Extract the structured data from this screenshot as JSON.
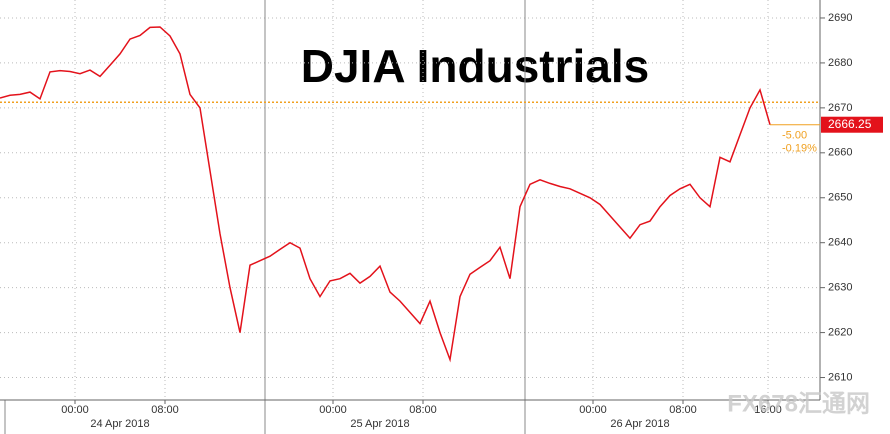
{
  "chart_data": {
    "type": "line",
    "title": "DJIA Industrials",
    "values": [
      2672.2,
      2672.8,
      2673.0,
      2673.5,
      2672.0,
      2678.0,
      2678.3,
      2678.1,
      2677.6,
      2678.4,
      2677.0,
      2679.5,
      2682.0,
      2685.3,
      2686.1,
      2687.9,
      2688.0,
      2686.0,
      2682.0,
      2673.0,
      2670.0,
      2656.0,
      2642.0,
      2630.0,
      2620.0,
      2635.0,
      2636.0,
      2637.0,
      2638.5,
      2640.0,
      2638.8,
      2632.0,
      2628.0,
      2631.5,
      2632.0,
      2633.2,
      2631.0,
      2632.5,
      2634.8,
      2629.0,
      2627.0,
      2624.5,
      2622.0,
      2627.0,
      2620.0,
      2614.0,
      2628.0,
      2633.0,
      2634.5,
      2636.0,
      2639.0,
      2632.0,
      2648.0,
      2653.0,
      2654.0,
      2653.2,
      2652.5,
      2652.0,
      2651.0,
      2650.0,
      2648.5,
      2646.0,
      2643.5,
      2641.0,
      2644.0,
      2644.8,
      2648.0,
      2650.5,
      2652.0,
      2653.0,
      2650.0,
      2648.0,
      2659.0,
      2658.0,
      2664.0,
      2670.0,
      2674.0,
      2666.25
    ],
    "color": "#e3121b",
    "xlim": [
      0,
      82
    ],
    "ylim": [
      2605,
      2694
    ],
    "yticks": [
      2610,
      2620,
      2630,
      2640,
      2650,
      2660,
      2670,
      2680,
      2690
    ],
    "xticks": [
      {
        "value": 7.5,
        "label": "00:00"
      },
      {
        "value": 16.5,
        "label": "08:00"
      },
      {
        "value": 33.3,
        "label": "00:00"
      },
      {
        "value": 42.3,
        "label": "08:00"
      },
      {
        "value": 59.3,
        "label": "00:00"
      },
      {
        "value": 68.3,
        "label": "08:00"
      },
      {
        "value": 76.8,
        "label": "16:00"
      }
    ],
    "date_labels": [
      {
        "value": 12,
        "label": "24 Apr 2018"
      },
      {
        "value": 38,
        "label": "25 Apr 2018"
      },
      {
        "value": 64,
        "label": "26 Apr 2018"
      }
    ],
    "ref_line": 2671.25,
    "ref_color": "#f0a020",
    "last_label": "2666.25",
    "change_label": "-5.00",
    "change_pct_label": "-0.19%",
    "watermark": "FX678汇通网",
    "grid": true
  }
}
